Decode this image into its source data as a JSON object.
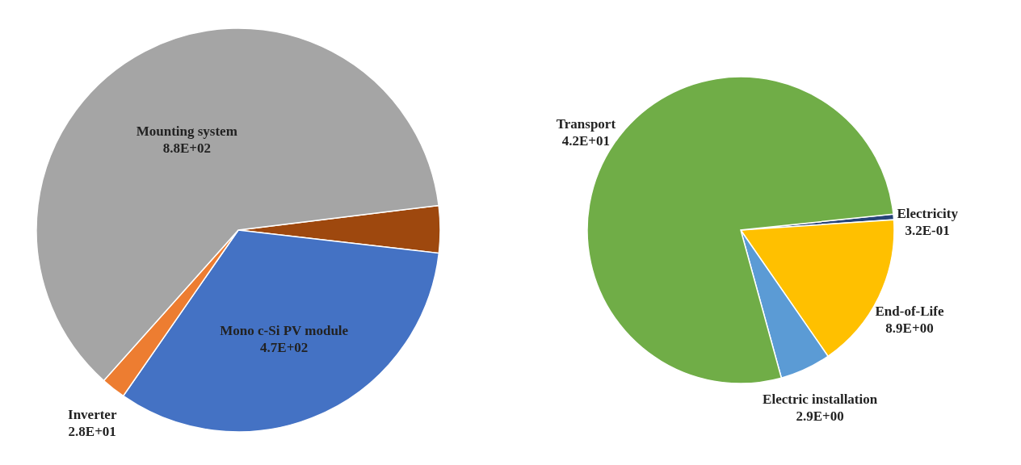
{
  "chart_data": [
    {
      "type": "pie",
      "categories": [
        null,
        "Mono c-Si PV module",
        "Inverter",
        "Mounting system"
      ],
      "values": [
        54,
        470,
        28,
        880
      ],
      "colors": [
        "#9e480e",
        "#4472c4",
        "#ed7d31",
        "#a5a5a5"
      ],
      "value_labels": [
        null,
        "4.7E+02",
        "2.8E+01",
        "8.8E+02"
      ],
      "legend": false
    },
    {
      "type": "pie",
      "categories": [
        "Electricity",
        "End-of-Life",
        "Electric installation",
        "Transport"
      ],
      "values": [
        0.32,
        8.9,
        2.9,
        42
      ],
      "colors": [
        "#264478",
        "#ffc000",
        "#5b9bd5",
        "#70ad47"
      ],
      "value_labels": [
        "3.2E-01",
        "8.9E+00",
        "2.9E+00",
        "4.2E+01"
      ],
      "legend": false
    }
  ]
}
